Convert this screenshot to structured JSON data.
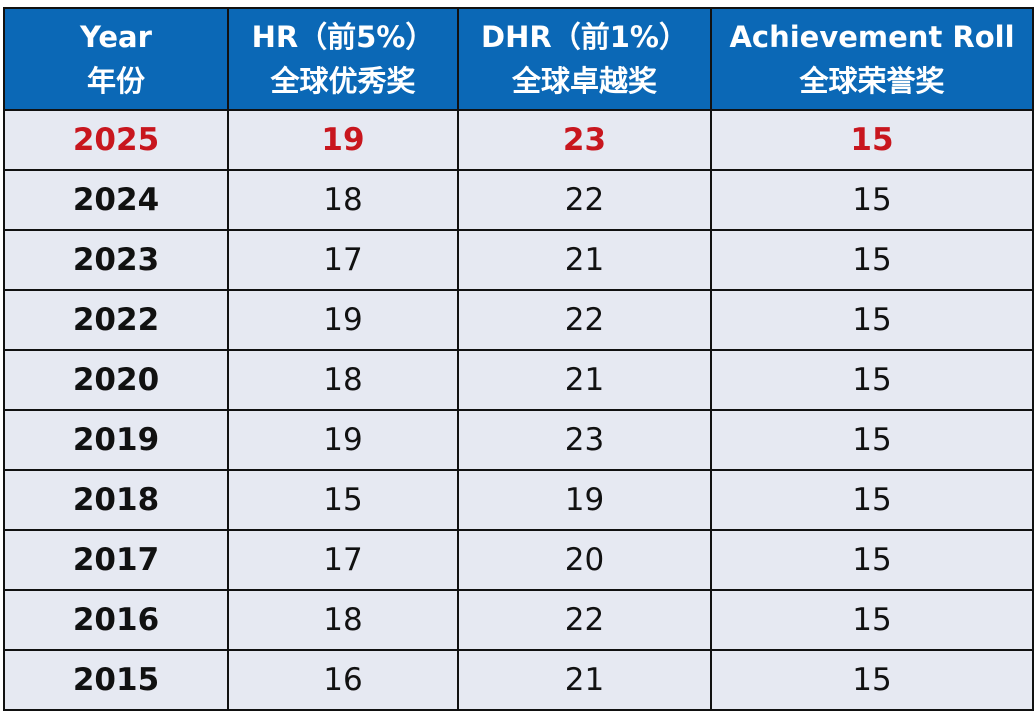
{
  "headers": [
    {
      "line1": "Year",
      "line2": "年份"
    },
    {
      "line1": "HR（前5%）",
      "line2": "全球优秀奖"
    },
    {
      "line1": "DHR（前1%）",
      "line2": "全球卓越奖"
    },
    {
      "line1": "Achievement Roll",
      "line2": "全球荣誉奖"
    }
  ],
  "rows": [
    [
      "2025",
      "19",
      "23",
      "15"
    ],
    [
      "2024",
      "18",
      "22",
      "15"
    ],
    [
      "2023",
      "17",
      "21",
      "15"
    ],
    [
      "2022",
      "19",
      "22",
      "15"
    ],
    [
      "2020",
      "18",
      "21",
      "15"
    ],
    [
      "2019",
      "19",
      "23",
      "15"
    ],
    [
      "2018",
      "15",
      "19",
      "15"
    ],
    [
      "2017",
      "17",
      "20",
      "15"
    ],
    [
      "2016",
      "18",
      "22",
      "15"
    ],
    [
      "2015",
      "16",
      "21",
      "15"
    ]
  ],
  "colors": {
    "header_bg": "#0b68b6",
    "row_bg": "#e6e9f2",
    "highlight": "#c8161e"
  }
}
